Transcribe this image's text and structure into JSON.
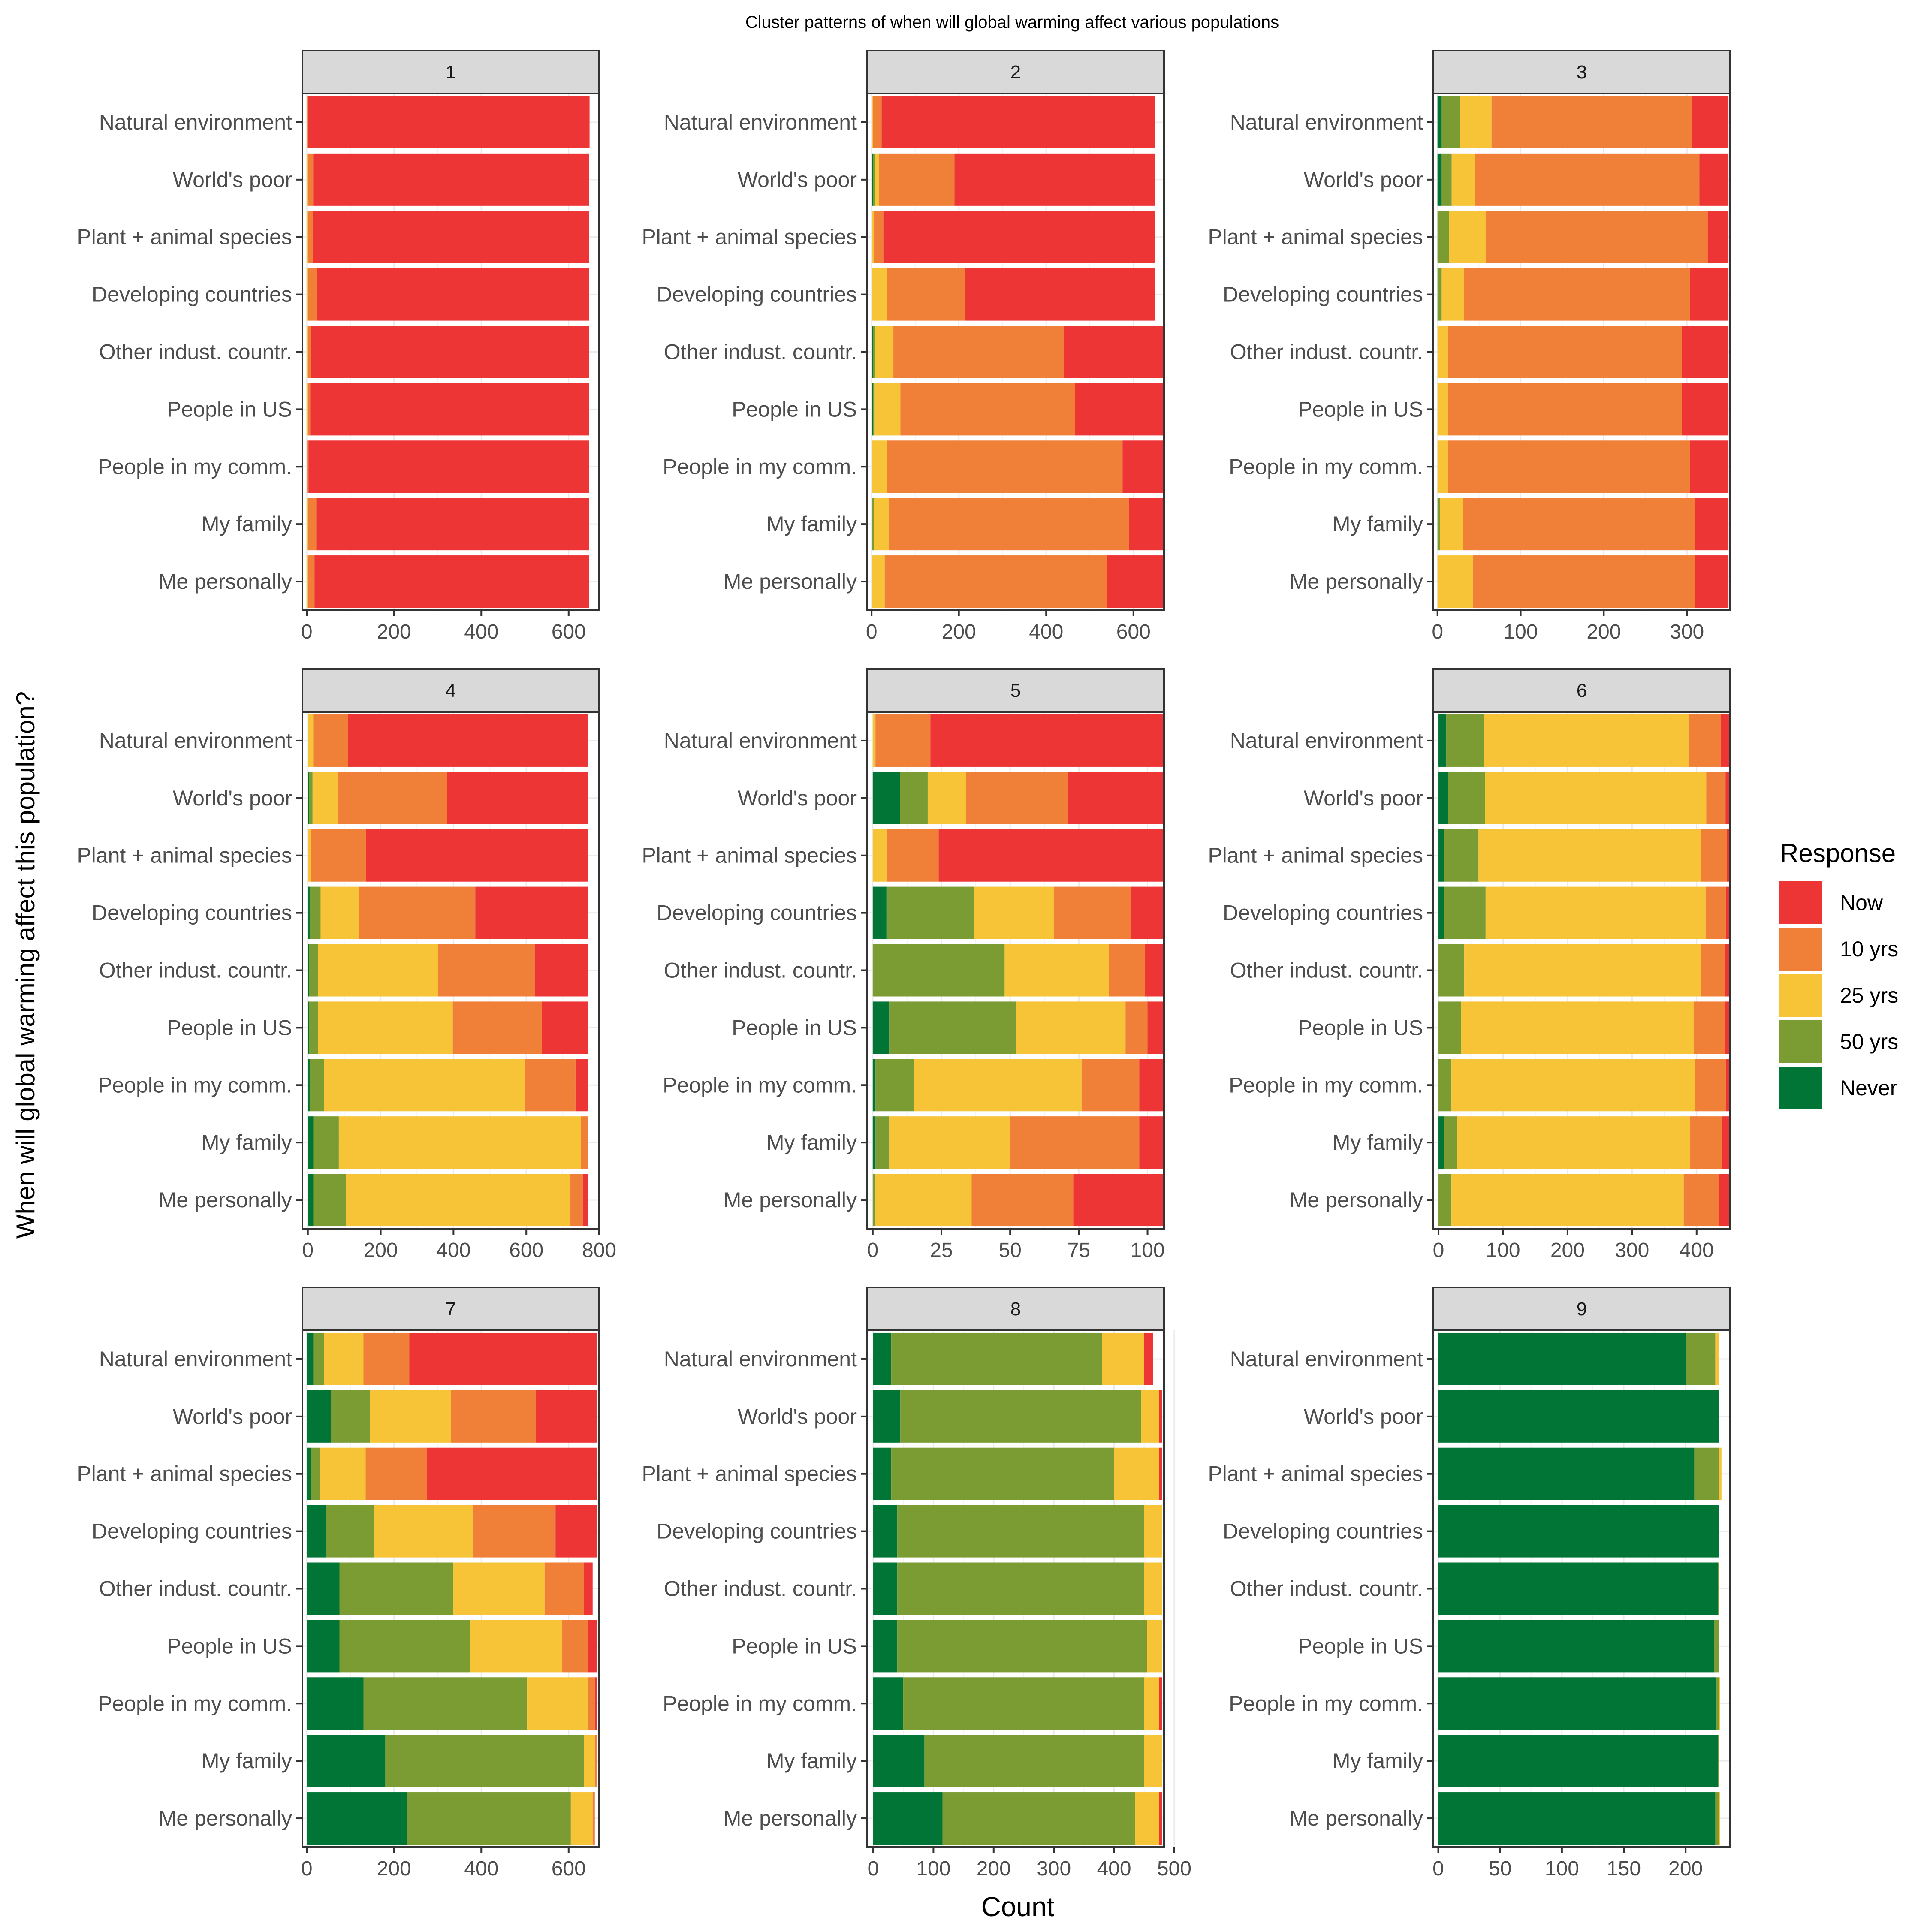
{
  "figure": {
    "title": "Cluster patterns of when will global warming affect various populations",
    "ylabel": "When will global warming affect this population?",
    "xlabel": "Count"
  },
  "legend": {
    "title": "Response",
    "items": [
      {
        "label": "Now",
        "color": "#ED3536"
      },
      {
        "label": "10 yrs",
        "color": "#F07F37"
      },
      {
        "label": "25 yrs",
        "color": "#F7C337"
      },
      {
        "label": "50 yrs",
        "color": "#7B9B33"
      },
      {
        "label": "Never",
        "color": "#007535"
      }
    ]
  },
  "chart_data": {
    "type": "bar",
    "orientation": "horizontal",
    "stacked": true,
    "categories": [
      "Natural environment",
      "World's poor",
      "Plant + animal species",
      "Developing countries",
      "Other indust. countr.",
      "People in US",
      "People in my comm.",
      "My family",
      "Me personally"
    ],
    "series_order": [
      "Never",
      "50 yrs",
      "25 yrs",
      "10 yrs",
      "Now"
    ],
    "legend_placement": "right",
    "grid": true,
    "panels": [
      {
        "label": "1",
        "xlim": [
          -10,
          670
        ],
        "ticks": [
          0,
          200,
          400,
          600
        ],
        "values": [
          [
            0,
            0,
            1,
            2,
            645
          ],
          [
            0,
            0,
            2,
            13,
            632
          ],
          [
            0,
            0,
            2,
            12,
            633
          ],
          [
            0,
            0,
            2,
            22,
            623
          ],
          [
            0,
            0,
            2,
            8,
            637
          ],
          [
            0,
            0,
            2,
            6,
            639
          ],
          [
            0,
            0,
            1,
            3,
            643
          ],
          [
            0,
            0,
            2,
            20,
            625
          ],
          [
            0,
            0,
            2,
            16,
            629
          ]
        ]
      },
      {
        "label": "2",
        "xlim": [
          -10,
          670
        ],
        "ticks": [
          0,
          200,
          400,
          600
        ],
        "values": [
          [
            0,
            0,
            3,
            20,
            627
          ],
          [
            3,
            5,
            9,
            173,
            460
          ],
          [
            0,
            0,
            5,
            22,
            623
          ],
          [
            0,
            0,
            35,
            180,
            435
          ],
          [
            3,
            5,
            42,
            390,
            230
          ],
          [
            3,
            3,
            60,
            400,
            204
          ],
          [
            0,
            0,
            35,
            540,
            95
          ],
          [
            0,
            5,
            35,
            550,
            79
          ],
          [
            0,
            0,
            30,
            510,
            130
          ]
        ]
      },
      {
        "label": "3",
        "xlim": [
          -5,
          352
        ],
        "ticks": [
          0,
          100,
          200,
          300
        ],
        "values": [
          [
            5,
            22,
            38,
            241,
            44
          ],
          [
            5,
            12,
            28,
            270,
            35
          ],
          [
            0,
            14,
            44,
            267,
            25
          ],
          [
            0,
            5,
            27,
            272,
            46
          ],
          [
            0,
            0,
            12,
            282,
            56
          ],
          [
            0,
            0,
            12,
            282,
            56
          ],
          [
            0,
            0,
            12,
            292,
            46
          ],
          [
            0,
            3,
            28,
            279,
            40
          ],
          [
            0,
            0,
            43,
            267,
            40
          ]
        ]
      },
      {
        "label": "4",
        "xlim": [
          -15,
          800
        ],
        "ticks": [
          0,
          200,
          400,
          600,
          800
        ],
        "values": [
          [
            0,
            0,
            15,
            95,
            660
          ],
          [
            3,
            10,
            70,
            300,
            387
          ],
          [
            0,
            0,
            8,
            152,
            610
          ],
          [
            5,
            30,
            105,
            320,
            310
          ],
          [
            3,
            25,
            330,
            265,
            147
          ],
          [
            3,
            25,
            370,
            245,
            127
          ],
          [
            5,
            40,
            550,
            140,
            35
          ],
          [
            15,
            70,
            665,
            20,
            0
          ],
          [
            15,
            90,
            615,
            35,
            15
          ]
        ]
      },
      {
        "label": "5",
        "xlim": [
          -2,
          106
        ],
        "ticks": [
          0,
          25,
          50,
          75,
          100
        ],
        "values": [
          [
            0,
            0,
            1,
            20,
            85
          ],
          [
            10,
            10,
            14,
            37,
            35
          ],
          [
            0,
            0,
            5,
            19,
            82
          ],
          [
            5,
            32,
            29,
            28,
            12
          ],
          [
            0,
            48,
            38,
            13,
            7
          ],
          [
            6,
            46,
            40,
            8,
            6
          ],
          [
            1,
            14,
            61,
            21,
            9
          ],
          [
            1,
            5,
            44,
            47,
            9
          ],
          [
            0,
            1,
            35,
            37,
            33
          ]
        ]
      },
      {
        "label": "6",
        "xlim": [
          -8,
          452
        ],
        "ticks": [
          0,
          100,
          200,
          300,
          400
        ],
        "values": [
          [
            12,
            58,
            318,
            50,
            12
          ],
          [
            15,
            57,
            343,
            30,
            5
          ],
          [
            8,
            54,
            345,
            40,
            3
          ],
          [
            8,
            65,
            341,
            32,
            4
          ],
          [
            0,
            40,
            367,
            37,
            6
          ],
          [
            0,
            35,
            361,
            48,
            6
          ],
          [
            0,
            20,
            378,
            48,
            4
          ],
          [
            8,
            20,
            362,
            50,
            10
          ],
          [
            0,
            20,
            360,
            55,
            15
          ]
        ]
      },
      {
        "label": "7",
        "xlim": [
          -10,
          670
        ],
        "ticks": [
          0,
          200,
          400,
          600
        ],
        "values": [
          [
            15,
            25,
            90,
            105,
            430
          ],
          [
            55,
            90,
            185,
            195,
            140
          ],
          [
            10,
            20,
            105,
            140,
            390
          ],
          [
            45,
            110,
            225,
            190,
            95
          ],
          [
            75,
            260,
            210,
            90,
            20
          ],
          [
            75,
            300,
            210,
            60,
            20
          ],
          [
            130,
            375,
            140,
            15,
            5
          ],
          [
            180,
            455,
            25,
            5,
            0
          ],
          [
            230,
            375,
            50,
            5,
            0
          ]
        ]
      },
      {
        "label": "8",
        "xlim": [
          -10,
          483
        ],
        "ticks": [
          0,
          100,
          200,
          300,
          400,
          500
        ],
        "values": [
          [
            30,
            350,
            70,
            0,
            15
          ],
          [
            45,
            400,
            30,
            0,
            5
          ],
          [
            30,
            370,
            75,
            0,
            5
          ],
          [
            40,
            410,
            30,
            0,
            0
          ],
          [
            40,
            410,
            30,
            0,
            0
          ],
          [
            40,
            415,
            25,
            0,
            0
          ],
          [
            50,
            400,
            25,
            0,
            5
          ],
          [
            85,
            365,
            30,
            0,
            0
          ],
          [
            115,
            320,
            40,
            0,
            5
          ]
        ]
      },
      {
        "label": "9",
        "xlim": [
          -4,
          236
        ],
        "ticks": [
          0,
          50,
          100,
          150,
          200
        ],
        "values": [
          [
            200,
            24,
            3,
            0,
            0
          ],
          [
            227,
            0,
            0,
            0,
            0
          ],
          [
            207,
            20,
            2,
            0,
            0
          ],
          [
            227,
            0,
            0,
            0,
            0
          ],
          [
            226,
            1,
            0,
            0,
            0
          ],
          [
            223,
            4,
            0,
            0,
            0
          ],
          [
            225,
            2,
            1,
            0,
            0
          ],
          [
            226,
            1,
            0,
            0,
            0
          ],
          [
            224,
            3,
            1,
            0,
            0
          ]
        ]
      }
    ]
  }
}
